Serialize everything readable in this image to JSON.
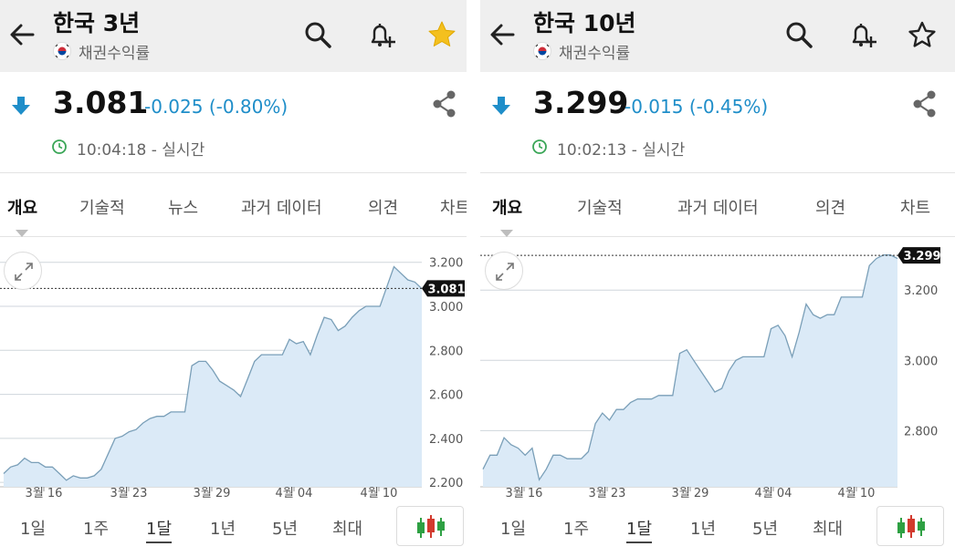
{
  "colors": {
    "accent": "#1f8ec9",
    "star_active": "#f4c01e",
    "line": "#7a9fb8",
    "fill": "#dbeaf7",
    "grid": "#cfd6dc",
    "time_icon": "#3aa657",
    "candle_up": "#2ea043",
    "candle_down": "#d23a2e"
  },
  "range_tabs": [
    "1일",
    "1주",
    "1달",
    "1년",
    "5년",
    "최대"
  ],
  "active_range": "1달",
  "panels": [
    {
      "title": "한국 3년",
      "subtitle": "채권수익률",
      "favorite": true,
      "icons": {
        "back": "back-arrow-icon",
        "search": "search-icon",
        "alert": "add-alert-bell-icon",
        "favorite": "star-filled-icon",
        "share": "share-icon",
        "direction": "down-arrow-icon",
        "clock": "clock-icon",
        "flag": "korea-flag-icon",
        "expand": "expand-icon",
        "candles": "candlestick-icon"
      },
      "price": "3.081",
      "change": "-0.025 (-0.80%)",
      "time": "10:04:18 - 실시간",
      "tabs": [
        "개요",
        "기술적",
        "뉴스",
        "과거 데이터",
        "의견",
        "차트"
      ],
      "active_tab": "개요",
      "chart_data": {
        "type": "area",
        "x_ticks": [
          "3월 16",
          "3월 23",
          "3월 29",
          "4월 04",
          "4월 10"
        ],
        "y_ticks": [
          "3.200",
          "3.000",
          "2.800",
          "2.600",
          "2.400",
          "2.200"
        ],
        "ylim": [
          2.18,
          3.265
        ],
        "current_label": "3.081",
        "current_value": 3.081,
        "values": [
          2.24,
          2.27,
          2.28,
          2.31,
          2.29,
          2.29,
          2.27,
          2.27,
          2.24,
          2.21,
          2.23,
          2.22,
          2.22,
          2.23,
          2.26,
          2.33,
          2.4,
          2.41,
          2.43,
          2.44,
          2.47,
          2.49,
          2.5,
          2.5,
          2.52,
          2.52,
          2.52,
          2.73,
          2.75,
          2.75,
          2.71,
          2.66,
          2.64,
          2.62,
          2.59,
          2.67,
          2.75,
          2.78,
          2.78,
          2.78,
          2.78,
          2.85,
          2.83,
          2.84,
          2.78,
          2.87,
          2.95,
          2.94,
          2.89,
          2.91,
          2.95,
          2.98,
          3.0,
          3.0,
          3.0,
          3.09,
          3.18,
          3.15,
          3.12,
          3.11,
          3.08
        ]
      }
    },
    {
      "title": "한국 10년",
      "subtitle": "채권수익률",
      "favorite": false,
      "icons": {
        "back": "back-arrow-icon",
        "search": "search-icon",
        "alert": "add-alert-bell-icon",
        "favorite": "star-outline-icon",
        "share": "share-icon",
        "direction": "down-arrow-icon",
        "clock": "clock-icon",
        "flag": "korea-flag-icon",
        "expand": "expand-icon",
        "candles": "candlestick-icon"
      },
      "price": "3.299",
      "change": "-0.015 (-0.45%)",
      "time": "10:02:13 - 실시간",
      "tabs": [
        "개요",
        "기술적",
        "뉴스",
        "과거 데이터",
        "의견",
        "차트"
      ],
      "active_tab": "개요",
      "chart_data": {
        "type": "area",
        "x_ticks": [
          "3월 16",
          "3월 23",
          "3월 29",
          "4월 04",
          "4월 10"
        ],
        "y_ticks": [
          "3.200",
          "3.000",
          "2.800"
        ],
        "ylim": [
          2.64,
          3.32
        ],
        "current_label": "3.299",
        "current_value": 3.299,
        "values": [
          2.69,
          2.73,
          2.73,
          2.78,
          2.76,
          2.75,
          2.73,
          2.75,
          2.66,
          2.69,
          2.73,
          2.73,
          2.72,
          2.72,
          2.72,
          2.74,
          2.82,
          2.85,
          2.83,
          2.86,
          2.86,
          2.88,
          2.89,
          2.89,
          2.89,
          2.9,
          2.9,
          2.9,
          3.02,
          3.03,
          3.0,
          2.97,
          2.94,
          2.91,
          2.92,
          2.97,
          3.0,
          3.01,
          3.01,
          3.01,
          3.01,
          3.09,
          3.1,
          3.07,
          3.01,
          3.08,
          3.16,
          3.13,
          3.12,
          3.13,
          3.13,
          3.18,
          3.18,
          3.18,
          3.18,
          3.27,
          3.29,
          3.3,
          3.3,
          3.29
        ]
      }
    }
  ]
}
